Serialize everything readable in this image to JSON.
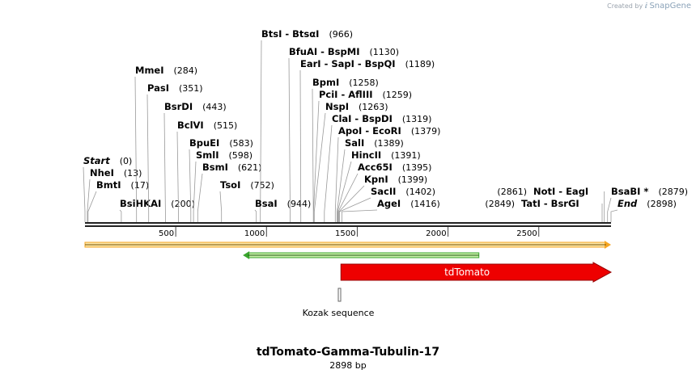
{
  "watermark": {
    "created_by": "Created by",
    "brand": "SnapGene"
  },
  "map": {
    "title": "tdTomato-Gamma-Tubulin-17",
    "length_text": "2898 bp",
    "length_bp": 2898,
    "sites": [
      {
        "name": "Start",
        "pos_text": "(0)",
        "pos": 0,
        "italic": true
      },
      {
        "name": "NheI",
        "pos_text": "(13)",
        "pos": 13
      },
      {
        "name": "BmtI",
        "pos_text": "(17)",
        "pos": 17
      },
      {
        "name": "BsiHKAI",
        "pos_text": "(200)",
        "pos": 200
      },
      {
        "name": "MmeI",
        "pos_text": "(284)",
        "pos": 284
      },
      {
        "name": "PasI",
        "pos_text": "(351)",
        "pos": 351
      },
      {
        "name": "BsrDI",
        "pos_text": "(443)",
        "pos": 443
      },
      {
        "name": "BclVI",
        "pos_text": "(515)",
        "pos": 515
      },
      {
        "name": "BpuEI",
        "pos_text": "(583)",
        "pos": 583
      },
      {
        "name": "SmlI",
        "pos_text": "(598)",
        "pos": 598
      },
      {
        "name": "BsmI",
        "pos_text": "(621)",
        "pos": 621
      },
      {
        "name": "TsoI",
        "pos_text": "(752)",
        "pos": 752
      },
      {
        "name": "BtsI  - BtsαI",
        "pos_text": "(966)",
        "pos": 966
      },
      {
        "name": "BsaI",
        "pos_text": "(944)",
        "pos": 944
      },
      {
        "name": "BfuAI  - BspMI",
        "pos_text": "(1130)",
        "pos": 1130
      },
      {
        "name": "EarI  - SapI  - BspQI",
        "pos_text": "(1189)",
        "pos": 1189
      },
      {
        "name": "BpmI",
        "pos_text": "(1258)",
        "pos": 1258
      },
      {
        "name": "PciI  - AflIII",
        "pos_text": "(1259)",
        "pos": 1259
      },
      {
        "name": "NspI",
        "pos_text": "(1263)",
        "pos": 1263
      },
      {
        "name": "ClaI  - BspDI",
        "pos_text": "(1319)",
        "pos": 1319
      },
      {
        "name": "ApoI  - EcoRI",
        "pos_text": "(1379)",
        "pos": 1379
      },
      {
        "name": "SalI",
        "pos_text": "(1389)",
        "pos": 1389
      },
      {
        "name": "HincII",
        "pos_text": "(1391)",
        "pos": 1391
      },
      {
        "name": "Acc65I",
        "pos_text": "(1395)",
        "pos": 1395
      },
      {
        "name": "KpnI",
        "pos_text": "(1399)",
        "pos": 1399
      },
      {
        "name": "SacII",
        "pos_text": "(1402)",
        "pos": 1402
      },
      {
        "name": "AgeI",
        "pos_text": "(1416)",
        "pos": 1416
      },
      {
        "name": "NotI  - EagI",
        "pos_text": "(2861)",
        "pos": 2861
      },
      {
        "name": "TatI  - BsrGI",
        "pos_text": "(2849)",
        "pos": 2849
      },
      {
        "name": "BsaBI *",
        "pos_text": "(2879)",
        "pos": 2879
      },
      {
        "name": "End",
        "pos_text": "(2898)",
        "pos": 2898,
        "italic": true
      }
    ],
    "ticks": [
      {
        "label": "500",
        "value": 500
      },
      {
        "label": "1000",
        "value": 1000
      },
      {
        "label": "1500",
        "value": 1500
      },
      {
        "label": "2000",
        "value": 2000
      },
      {
        "label": "2500",
        "value": 2500
      }
    ],
    "features": [
      {
        "name": "orange-strand-arrow",
        "start": 0,
        "end": 2898,
        "color": "#f5a623"
      },
      {
        "name": "green-strand-arrow",
        "start": 870,
        "end": 2170,
        "color": "#3aa52e"
      },
      {
        "name": "tdTomato",
        "label": "tdTomato",
        "start": 1410,
        "end": 2898,
        "color": "#ee0000"
      },
      {
        "name": "kozak-sequence",
        "label": "Kozak sequence",
        "start": 1400,
        "end": 1410,
        "color": "#888888"
      }
    ]
  }
}
